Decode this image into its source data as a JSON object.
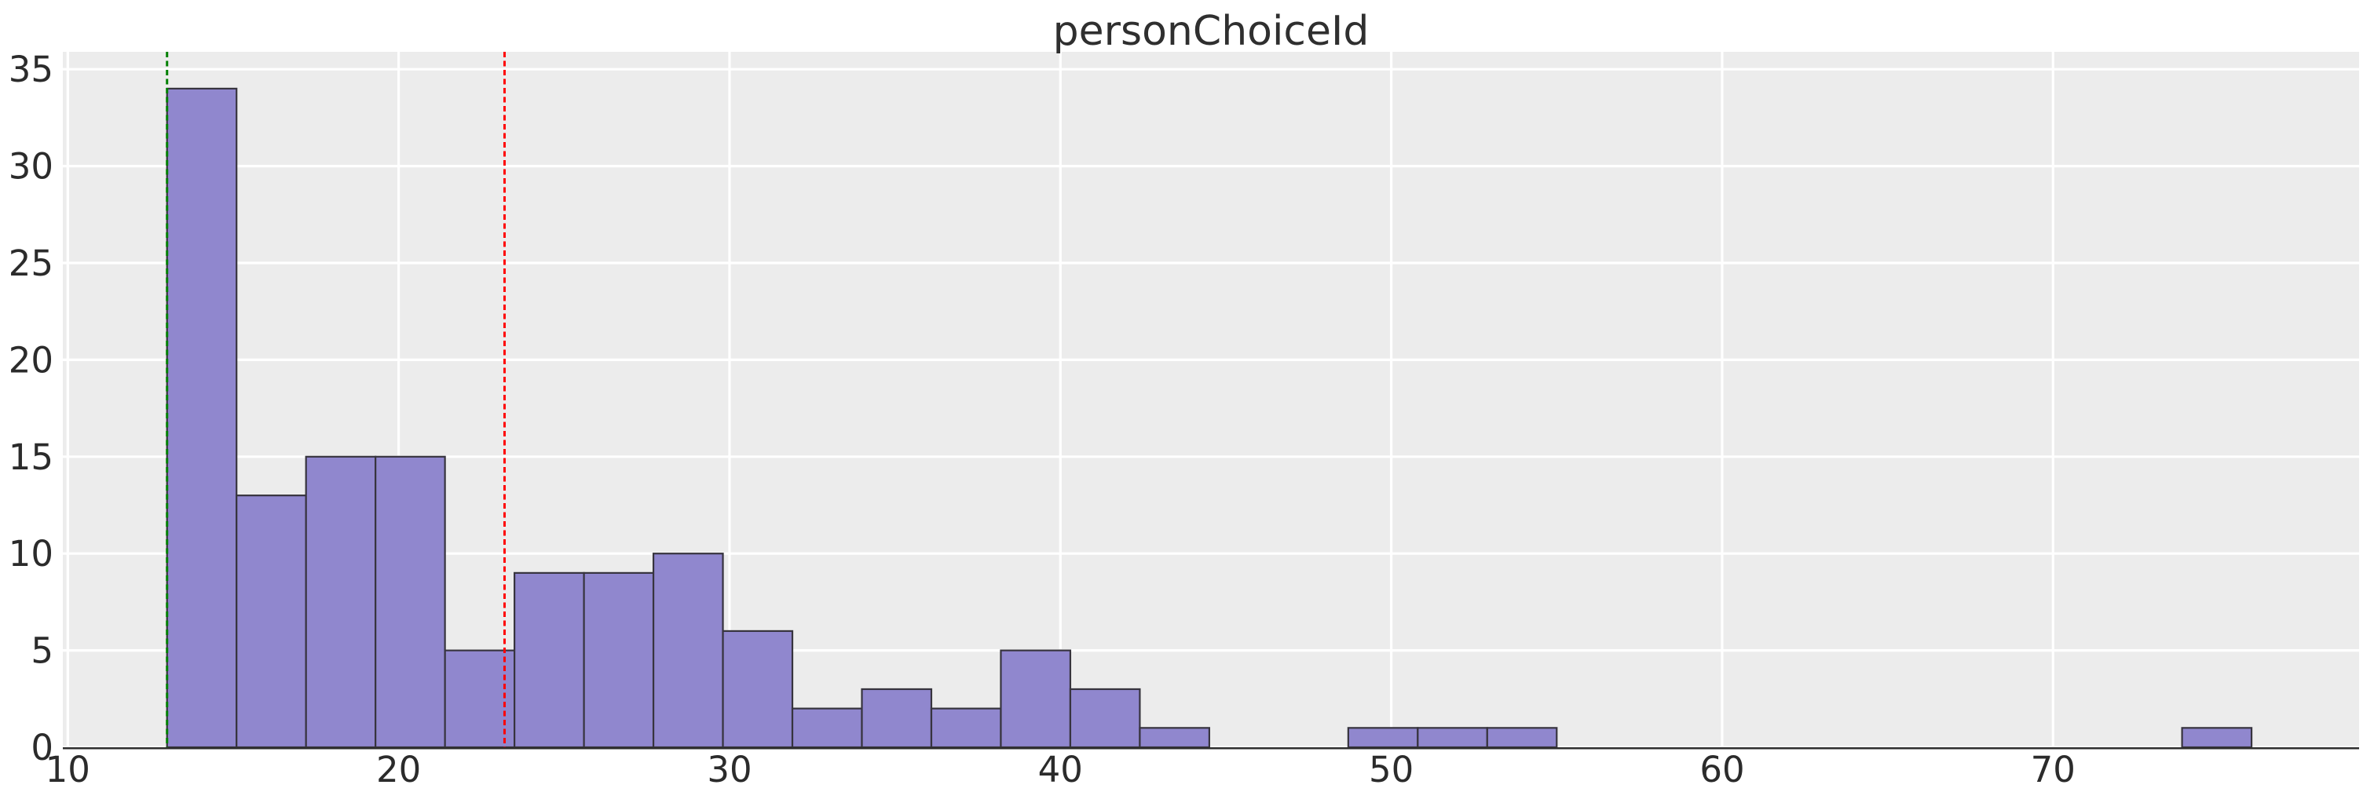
{
  "chart_data": {
    "type": "bar",
    "subtype": "histogram",
    "title": "personChoiceId",
    "xlabel": "",
    "ylabel": "",
    "bin_start": 13.0,
    "bin_width": 2.1,
    "counts": [
      34,
      13,
      15,
      15,
      5,
      9,
      9,
      10,
      6,
      2,
      3,
      2,
      5,
      3,
      1,
      0,
      0,
      1,
      1,
      1,
      0,
      0,
      0,
      0,
      0,
      0,
      0,
      0,
      0,
      1
    ],
    "x_ticks": [
      10,
      20,
      30,
      40,
      50,
      60,
      70
    ],
    "y_ticks": [
      0,
      5,
      10,
      15,
      20,
      25,
      30,
      35
    ],
    "xlim": [
      9.85,
      79.25
    ],
    "ylim": [
      0,
      35.9
    ],
    "grid": true,
    "legend": false,
    "vlines": [
      {
        "name": "min-marker-line",
        "x": 13.0,
        "color": "#008000",
        "style": "dashed"
      },
      {
        "name": "mean-marker-line",
        "x": 23.2,
        "color": "#ff0000",
        "style": "dashed"
      }
    ],
    "colors": {
      "bar_fill": "#9087ce",
      "bar_edge": "#37343e",
      "plot_bg": "#ececec",
      "grid": "#ffffff",
      "spine": "#2e2e2e",
      "text": "#2b2b2b"
    }
  }
}
